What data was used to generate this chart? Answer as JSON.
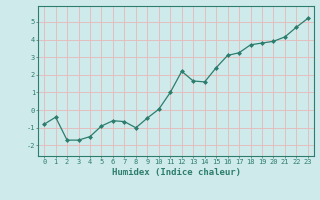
{
  "x": [
    0,
    1,
    2,
    3,
    4,
    5,
    6,
    7,
    8,
    9,
    10,
    11,
    12,
    13,
    14,
    15,
    16,
    17,
    18,
    19,
    20,
    21,
    22,
    23
  ],
  "y": [
    -0.8,
    -0.4,
    -1.7,
    -1.7,
    -1.5,
    -0.9,
    -0.6,
    -0.65,
    -1.0,
    -0.45,
    0.05,
    1.0,
    2.2,
    1.65,
    1.6,
    2.4,
    3.1,
    3.25,
    3.7,
    3.8,
    3.9,
    4.15,
    4.7,
    5.2
  ],
  "xlabel": "Humidex (Indice chaleur)",
  "ylim": [
    -2.6,
    5.9
  ],
  "xlim": [
    -0.5,
    23.5
  ],
  "yticks": [
    -2,
    -1,
    0,
    1,
    2,
    3,
    4,
    5
  ],
  "xticks": [
    0,
    1,
    2,
    3,
    4,
    5,
    6,
    7,
    8,
    9,
    10,
    11,
    12,
    13,
    14,
    15,
    16,
    17,
    18,
    19,
    20,
    21,
    22,
    23
  ],
  "line_color": "#2d7d6e",
  "marker": "D",
  "marker_size": 2.0,
  "bg_color": "#ceeaea",
  "grid_color": "#e8b8b8",
  "label_color": "#2d7d6e",
  "tick_color": "#2d7d6e",
  "font_name": "monospace",
  "tick_fontsize": 5.0,
  "xlabel_fontsize": 6.5,
  "linewidth": 0.9
}
